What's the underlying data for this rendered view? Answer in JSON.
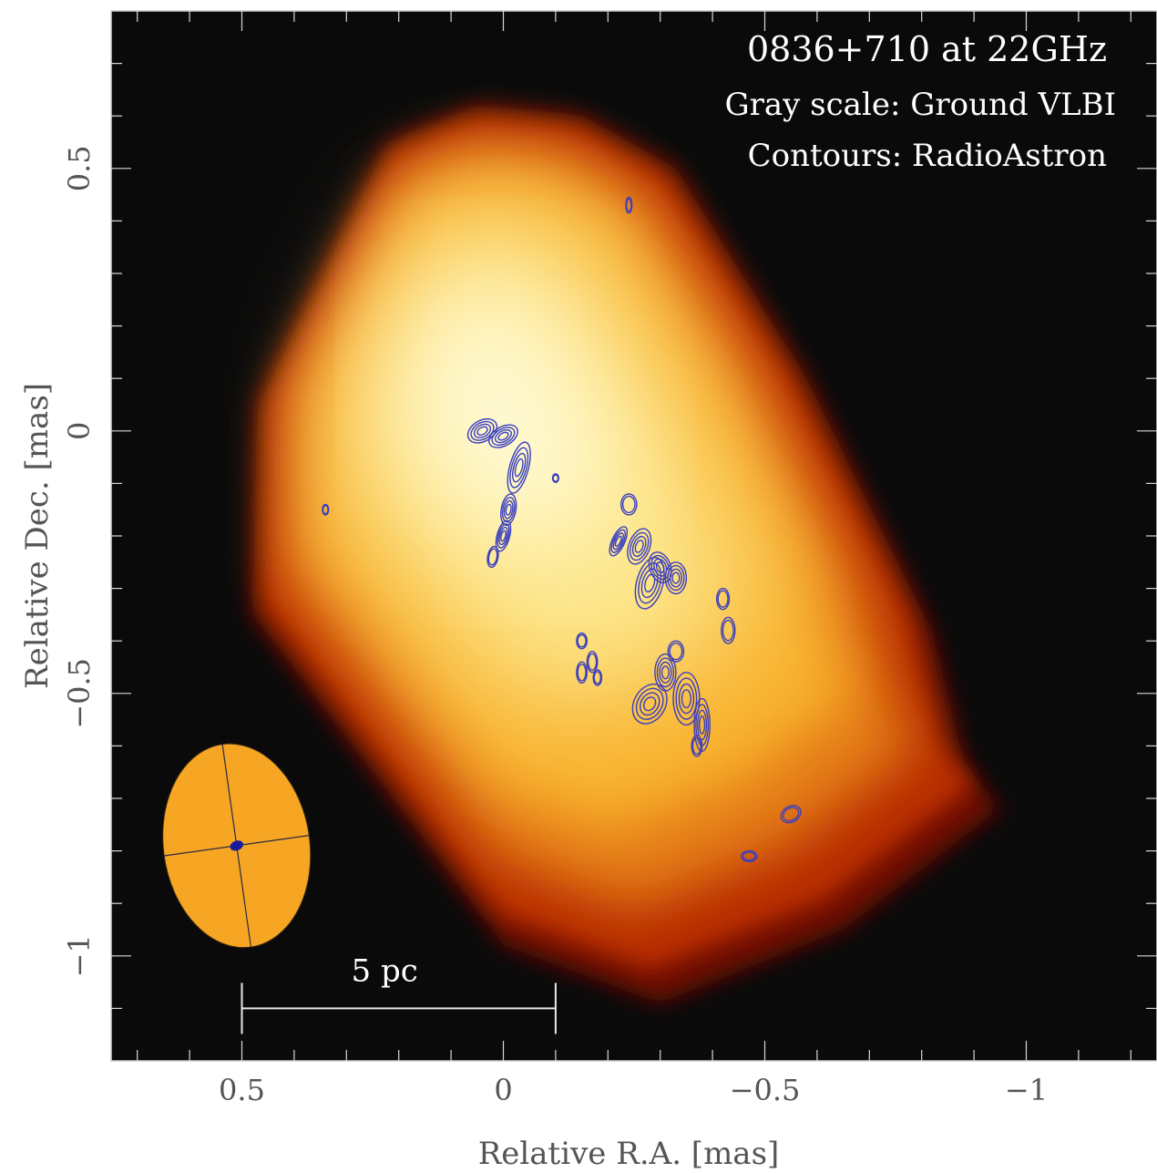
{
  "chart_data": {
    "type": "heatmap",
    "title": "0836+710 at 22GHz",
    "annotations": [
      "Gray scale: Ground VLBI",
      "Contours: RadioAstron"
    ],
    "xlabel": "Relative R.A. [mas]",
    "ylabel": "Relative Dec. [mas]",
    "xlim": [
      0.75,
      -1.25
    ],
    "ylim": [
      -1.2,
      0.8
    ],
    "x_axis_reversed": true,
    "xticks": [
      {
        "value": 0.5,
        "label": "0.5"
      },
      {
        "value": 0,
        "label": "0"
      },
      {
        "value": -0.5,
        "label": "−0.5"
      },
      {
        "value": -1,
        "label": "−1"
      }
    ],
    "yticks": [
      {
        "value": 0.5,
        "label": "0.5"
      },
      {
        "value": 0,
        "label": "0"
      },
      {
        "value": -0.5,
        "label": "−0.5"
      },
      {
        "value": -1,
        "label": "−1"
      }
    ],
    "grid": false,
    "background_color": "#0a0a0a",
    "colormap": [
      "#0a0a0a",
      "#6e0c00",
      "#b62a00",
      "#e47a12",
      "#f8b02c",
      "#fde68a",
      "#fffbd8"
    ],
    "contour_color": "#3a3ec0",
    "beam_fill_color": "#f6a623",
    "ground_beam": {
      "center": [
        0.51,
        -0.79
      ],
      "semi_major_mas": 0.195,
      "semi_minor_mas": 0.14
    },
    "space_beam": {
      "center": [
        0.51,
        -0.79
      ],
      "size_mas": 0.013
    },
    "scale_bar": {
      "label": "5 pc",
      "from": 0.5,
      "to": -0.1,
      "y": -1.1
    },
    "ground_image": {
      "description_points": [
        [
          0.22,
          0.55
        ],
        [
          0.05,
          0.62
        ],
        [
          -0.15,
          0.6
        ],
        [
          -0.33,
          0.5
        ],
        [
          -0.58,
          0.1
        ],
        [
          -0.82,
          -0.38
        ],
        [
          -0.88,
          -0.63
        ],
        [
          -0.95,
          -0.72
        ],
        [
          -0.65,
          -0.95
        ],
        [
          -0.3,
          -1.09
        ],
        [
          0.0,
          -0.98
        ],
        [
          0.25,
          -0.65
        ],
        [
          0.48,
          -0.35
        ],
        [
          0.47,
          0.05
        ]
      ],
      "peak": [
        0.07,
        0.15
      ]
    },
    "contour_components": [
      {
        "x": 0.04,
        "y": 0.0,
        "rx": 0.03,
        "ry": 0.02,
        "angle": -30
      },
      {
        "x": 0.0,
        "y": -0.01,
        "rx": 0.03,
        "ry": 0.018,
        "angle": -30
      },
      {
        "x": -0.03,
        "y": -0.07,
        "rx": 0.018,
        "ry": 0.05,
        "angle": 15
      },
      {
        "x": -0.01,
        "y": -0.15,
        "rx": 0.014,
        "ry": 0.03,
        "angle": 10
      },
      {
        "x": 0.0,
        "y": -0.2,
        "rx": 0.012,
        "ry": 0.03,
        "angle": 15
      },
      {
        "x": 0.02,
        "y": -0.24,
        "rx": 0.01,
        "ry": 0.02,
        "angle": 10
      },
      {
        "x": -0.24,
        "y": -0.14,
        "rx": 0.015,
        "ry": 0.02,
        "angle": 0
      },
      {
        "x": -0.22,
        "y": -0.21,
        "rx": 0.012,
        "ry": 0.03,
        "angle": 25
      },
      {
        "x": -0.26,
        "y": -0.22,
        "rx": 0.02,
        "ry": 0.035,
        "angle": 20
      },
      {
        "x": -0.28,
        "y": -0.29,
        "rx": 0.025,
        "ry": 0.05,
        "angle": 15
      },
      {
        "x": -0.3,
        "y": -0.26,
        "rx": 0.02,
        "ry": 0.03,
        "angle": -20
      },
      {
        "x": -0.33,
        "y": -0.28,
        "rx": 0.02,
        "ry": 0.03,
        "angle": 0
      },
      {
        "x": -0.42,
        "y": -0.32,
        "rx": 0.012,
        "ry": 0.02,
        "angle": 0
      },
      {
        "x": -0.43,
        "y": -0.38,
        "rx": 0.013,
        "ry": 0.025,
        "angle": 0
      },
      {
        "x": -0.33,
        "y": -0.42,
        "rx": 0.015,
        "ry": 0.02,
        "angle": 0
      },
      {
        "x": -0.31,
        "y": -0.46,
        "rx": 0.02,
        "ry": 0.035,
        "angle": 0
      },
      {
        "x": -0.28,
        "y": -0.52,
        "rx": 0.03,
        "ry": 0.04,
        "angle": 30
      },
      {
        "x": -0.35,
        "y": -0.51,
        "rx": 0.025,
        "ry": 0.05,
        "angle": 0
      },
      {
        "x": -0.38,
        "y": -0.56,
        "rx": 0.015,
        "ry": 0.05,
        "angle": 0
      },
      {
        "x": -0.37,
        "y": -0.6,
        "rx": 0.01,
        "ry": 0.02,
        "angle": 0
      },
      {
        "x": -0.15,
        "y": -0.4,
        "rx": 0.01,
        "ry": 0.015,
        "angle": 0
      },
      {
        "x": -0.17,
        "y": -0.44,
        "rx": 0.01,
        "ry": 0.02,
        "angle": 0
      },
      {
        "x": -0.15,
        "y": -0.46,
        "rx": 0.01,
        "ry": 0.02,
        "angle": 0
      },
      {
        "x": -0.18,
        "y": -0.47,
        "rx": 0.008,
        "ry": 0.015,
        "angle": 0
      },
      {
        "x": -0.55,
        "y": -0.73,
        "rx": 0.02,
        "ry": 0.015,
        "angle": -30
      },
      {
        "x": -0.47,
        "y": -0.81,
        "rx": 0.015,
        "ry": 0.01,
        "angle": 0
      },
      {
        "x": 0.34,
        "y": -0.15,
        "rx": 0.006,
        "ry": 0.01,
        "angle": 0
      },
      {
        "x": -0.1,
        "y": -0.09,
        "rx": 0.006,
        "ry": 0.008,
        "angle": 0
      },
      {
        "x": -0.24,
        "y": 0.43,
        "rx": 0.006,
        "ry": 0.015,
        "angle": 0
      }
    ]
  }
}
